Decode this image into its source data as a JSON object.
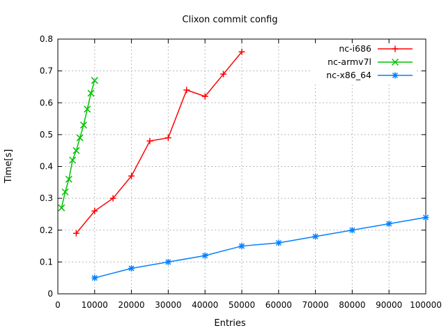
{
  "chart_data": {
    "type": "line",
    "title": "Clixon commit config",
    "xlabel": "Entries",
    "ylabel": "Time[s]",
    "xlim": [
      0,
      100000
    ],
    "ylim": [
      0,
      0.8
    ],
    "grid": true,
    "legend_position": "top-right-inside",
    "x_ticks": [
      0,
      10000,
      20000,
      30000,
      40000,
      50000,
      60000,
      70000,
      80000,
      90000,
      100000
    ],
    "x_tick_labels": [
      "0",
      "10000",
      "20000",
      "30000",
      "40000",
      "50000",
      "60000",
      "70000",
      "80000",
      "90000",
      "100000"
    ],
    "y_ticks": [
      0,
      0.1,
      0.2,
      0.3,
      0.4,
      0.5,
      0.6,
      0.7,
      0.8
    ],
    "y_tick_labels": [
      "0",
      "0.1",
      "0.2",
      "0.3",
      "0.4",
      "0.5",
      "0.6",
      "0.7",
      "0.8"
    ],
    "series": [
      {
        "name": "nc-i686",
        "color": "#ff0000",
        "marker": "plus",
        "points": [
          [
            5000,
            0.19
          ],
          [
            10000,
            0.26
          ],
          [
            15000,
            0.3
          ],
          [
            20000,
            0.37
          ],
          [
            25000,
            0.48
          ],
          [
            30000,
            0.49
          ],
          [
            35000,
            0.64
          ],
          [
            40000,
            0.62
          ],
          [
            45000,
            0.69
          ],
          [
            50000,
            0.76
          ]
        ]
      },
      {
        "name": "nc-armv7l",
        "color": "#00c000",
        "marker": "cross",
        "points": [
          [
            1000,
            0.27
          ],
          [
            2000,
            0.32
          ],
          [
            3000,
            0.36
          ],
          [
            4000,
            0.42
          ],
          [
            5000,
            0.45
          ],
          [
            6000,
            0.49
          ],
          [
            7000,
            0.53
          ],
          [
            8000,
            0.58
          ],
          [
            9000,
            0.63
          ],
          [
            10000,
            0.67
          ]
        ]
      },
      {
        "name": "nc-x86_64",
        "color": "#0080ff",
        "marker": "asterisk",
        "points": [
          [
            10000,
            0.05
          ],
          [
            20000,
            0.08
          ],
          [
            30000,
            0.1
          ],
          [
            40000,
            0.12
          ],
          [
            50000,
            0.15
          ],
          [
            60000,
            0.16
          ],
          [
            70000,
            0.18
          ],
          [
            80000,
            0.2
          ],
          [
            90000,
            0.22
          ],
          [
            100000,
            0.24
          ]
        ]
      }
    ]
  }
}
